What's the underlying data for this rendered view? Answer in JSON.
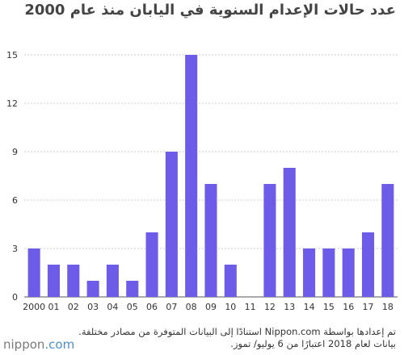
{
  "chart_data": {
    "type": "bar",
    "title": "عدد حالات الإعدام السنوية في اليابان منذ عام 2000",
    "categories": [
      "2000",
      "01",
      "02",
      "03",
      "04",
      "05",
      "06",
      "07",
      "08",
      "09",
      "10",
      "11",
      "12",
      "13",
      "14",
      "15",
      "16",
      "17",
      "18"
    ],
    "values": [
      3,
      2,
      2,
      1,
      2,
      1,
      4,
      9,
      15,
      7,
      2,
      0,
      7,
      8,
      3,
      3,
      3,
      4,
      7
    ],
    "ylim": [
      0,
      15
    ],
    "yticks": [
      0,
      3,
      6,
      9,
      12,
      15
    ],
    "grid": true,
    "legend": "none",
    "bar_color": "#6c5ce7"
  },
  "source_note": "تم إعدادها بواسطة Nippon.com استنادًا إلى البيانات المتوفرة من مصادر مختلفة. بيانات لعام 2018 اعتبارًا من 6 يوليو/ تموز.",
  "logo": {
    "brand": "nippon",
    "tld": ".com"
  },
  "colors": {
    "bar": "#6c5ce7",
    "grid": "#cccccc",
    "axis": "#555555"
  }
}
